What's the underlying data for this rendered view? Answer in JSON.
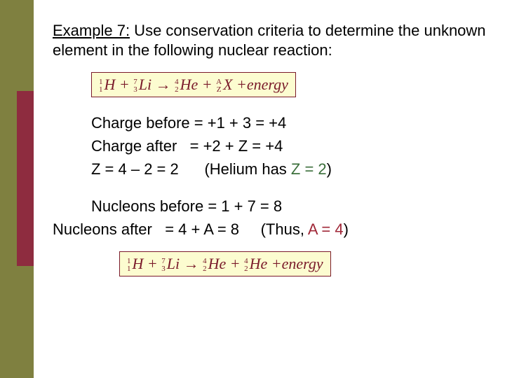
{
  "title": {
    "label_prefix": "Example 7:",
    "text_rest": " Use conservation criteria to determine the unknown element in the following nuclear reaction:"
  },
  "equation1": {
    "h_top": "1",
    "h_bot": "1",
    "h_sym": "H",
    "li_top": "7",
    "li_bot": "3",
    "li_sym": "Li",
    "he_top": "4",
    "he_bot": "2",
    "he_sym": "He",
    "x_top": "A",
    "x_bot": "Z",
    "x_sym": "X",
    "plus": "+",
    "arrow": "→",
    "energy": "energy"
  },
  "charge": {
    "before": "Charge before = +1 + 3 = +4",
    "after": "Charge after   = +2 + Z = +4",
    "z_line_a": "Z = 4 – 2 = 2",
    "z_line_b": "(Helium has ",
    "z_line_c": "Z = 2",
    "z_line_d": ")"
  },
  "nucleons": {
    "before": "Nucleons before = 1 + 7 = 8",
    "after_a": "Nucleons after   = 4 + A = 8",
    "after_b": "(Thus, ",
    "after_c": "A = 4",
    "after_d": ")"
  },
  "equation2": {
    "h_top": "1",
    "h_bot": "1",
    "h_sym": "H",
    "li_top": "7",
    "li_bot": "3",
    "li_sym": "Li",
    "he1_top": "4",
    "he1_bot": "2",
    "he1_sym": "He",
    "he2_top": "4",
    "he2_bot": "2",
    "he2_sym": "He",
    "plus": "+",
    "arrow": "→",
    "energy": "energy"
  },
  "colors": {
    "olive": "#7f8040",
    "maroon": "#8e2c3f",
    "eq_border": "#7a1a2a",
    "eq_bg": "#fcfcd0",
    "eq_text": "#7a1a2a",
    "z_color": "#3b6f3b",
    "a_color": "#a02838"
  }
}
